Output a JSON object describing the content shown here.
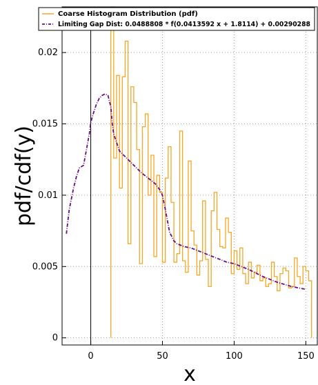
{
  "chart_data": {
    "type": "line",
    "xlabel": "x",
    "ylabel": "pdf/cdf(y)",
    "xlim": [
      -20,
      158
    ],
    "ylim": [
      -0.0005,
      0.0232
    ],
    "x_ticks": [
      0,
      50,
      100,
      150
    ],
    "x_tick_labels": [
      "0",
      "50",
      "100",
      "150"
    ],
    "y_ticks": [
      0,
      0.005,
      0.01,
      0.015,
      0.02
    ],
    "y_tick_labels": [
      "0",
      "0.005",
      "0.01",
      "0.015",
      "0.02"
    ],
    "grid": true,
    "grid_style": "dotted",
    "zero_line_x": 0,
    "legend_position": "top",
    "colors": {
      "histogram": "#f5a623",
      "fit": "#6a0d83",
      "grid": "#9a9a9a"
    },
    "series": [
      {
        "name": "Coarse Histogram Distribution (pdf)",
        "kind": "histogram-step",
        "bin_width": 2,
        "x": [
          14,
          16,
          18,
          20,
          22,
          24,
          26,
          28,
          30,
          32,
          34,
          36,
          38,
          40,
          42,
          44,
          46,
          48,
          50,
          52,
          54,
          56,
          58,
          60,
          62,
          64,
          66,
          68,
          70,
          72,
          74,
          76,
          78,
          80,
          82,
          84,
          86,
          88,
          90,
          92,
          94,
          96,
          98,
          100,
          102,
          104,
          106,
          108,
          110,
          112,
          114,
          116,
          118,
          120,
          122,
          124,
          126,
          128,
          130,
          132,
          134,
          136,
          138,
          140,
          142,
          144,
          146,
          148,
          150,
          152
        ],
        "values": [
          0.0232,
          0.0126,
          0.0184,
          0.0105,
          0.0183,
          0.0208,
          0.0066,
          0.0176,
          0.0165,
          0.0132,
          0.0052,
          0.0148,
          0.0157,
          0.01,
          0.0128,
          0.0057,
          0.0114,
          0.0102,
          0.0053,
          0.0112,
          0.0134,
          0.0095,
          0.0053,
          0.0059,
          0.0145,
          0.0054,
          0.0046,
          0.0124,
          0.0075,
          0.0065,
          0.0044,
          0.0054,
          0.0096,
          0.0055,
          0.0036,
          0.0089,
          0.0102,
          0.0076,
          0.0064,
          0.0063,
          0.0084,
          0.0074,
          0.0045,
          0.0061,
          0.0048,
          0.0063,
          0.0045,
          0.0038,
          0.0053,
          0.0042,
          0.0046,
          0.0051,
          0.004,
          0.0042,
          0.0036,
          0.0038,
          0.0053,
          0.0043,
          0.0033,
          0.0045,
          0.0049,
          0.0047,
          0.0035,
          0.0036,
          0.0056,
          0.0043,
          0.0038,
          0.005,
          0.0047,
          0.004
        ]
      },
      {
        "name": "Limiting Gap Dist: 0.0488808 * f(0.0413592 x + 1.8114) + 0.00290288",
        "kind": "fit-curve",
        "x": [
          -17,
          -15,
          -12,
          -10,
          -8,
          -5,
          -3,
          -1,
          0,
          2,
          4,
          6,
          8,
          10,
          12,
          14,
          15,
          16,
          18,
          20,
          25,
          30,
          35,
          40,
          45,
          48,
          50,
          52,
          55,
          58,
          60,
          65,
          70,
          75,
          80,
          85,
          90,
          95,
          100,
          110,
          120,
          130,
          140,
          150
        ],
        "values": [
          0.0073,
          0.009,
          0.0105,
          0.0113,
          0.0119,
          0.0121,
          0.0132,
          0.0143,
          0.0151,
          0.0158,
          0.0164,
          0.0168,
          0.017,
          0.0171,
          0.017,
          0.0162,
          0.015,
          0.0143,
          0.0137,
          0.0131,
          0.0126,
          0.0121,
          0.0116,
          0.0112,
          0.0108,
          0.0104,
          0.01,
          0.009,
          0.0074,
          0.0068,
          0.0066,
          0.0064,
          0.0063,
          0.0061,
          0.0059,
          0.0057,
          0.0055,
          0.0053,
          0.0052,
          0.0048,
          0.0043,
          0.0039,
          0.0036,
          0.0034
        ]
      }
    ]
  }
}
